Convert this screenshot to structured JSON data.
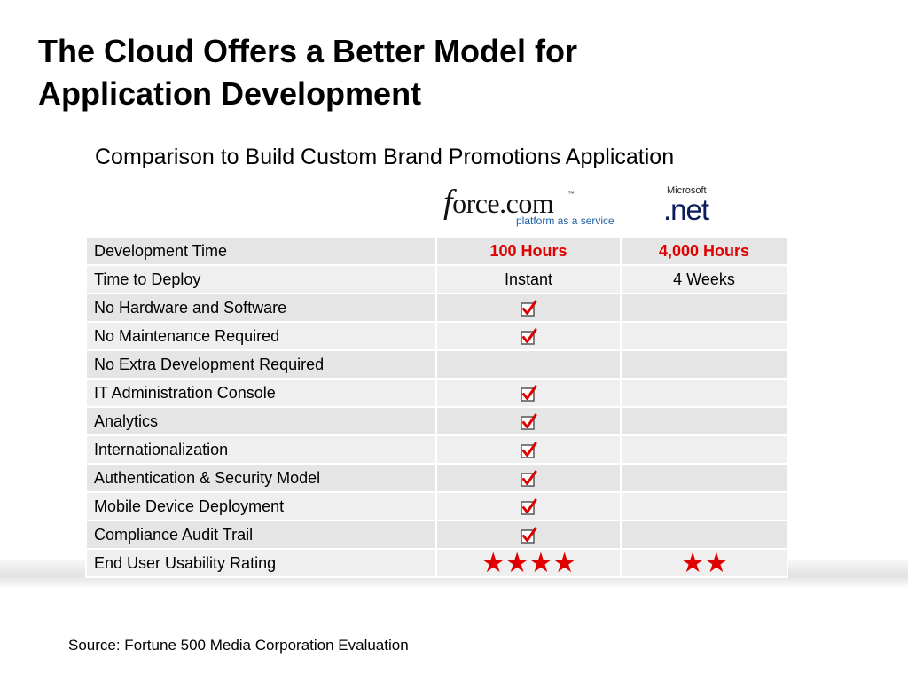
{
  "title_line1": "The Cloud Offers a Better Model for",
  "title_line2": "Application Development",
  "subtitle": "Comparison to Build Custom Brand Promotions Application",
  "logos": {
    "force_main": "force.com",
    "force_f": "f",
    "force_rest": "orce.com",
    "force_tm": "™",
    "force_sub": "platform as a service",
    "ms_label": "Microsoft",
    "net_label": ".net"
  },
  "table": {
    "rows": [
      {
        "label": "Development Time",
        "force": "100 Hours",
        "net": "4,000 Hours"
      },
      {
        "label": "Time to Deploy",
        "force": "Instant",
        "net": "4 Weeks"
      },
      {
        "label": "No Hardware and Software",
        "force_check": true,
        "net_check": false
      },
      {
        "label": "No Maintenance Required",
        "force_check": true,
        "net_check": false
      },
      {
        "label": "No Extra Development Required",
        "force_check": false,
        "net_check": false
      },
      {
        "label": "IT Administration Console",
        "indent": true,
        "force_check": true,
        "net_check": false
      },
      {
        "label": "Analytics",
        "indent": true,
        "force_check": true,
        "net_check": false
      },
      {
        "label": "Internationalization",
        "indent": true,
        "force_check": true,
        "net_check": false
      },
      {
        "label": "Authentication & Security Model",
        "indent": true,
        "force_check": true,
        "net_check": false
      },
      {
        "label": "Mobile Device Deployment",
        "indent": true,
        "force_check": true,
        "net_check": false
      },
      {
        "label": "Compliance Audit Trail",
        "indent": true,
        "force_check": true,
        "net_check": false
      },
      {
        "label": "End User Usability Rating",
        "force_rating": 4,
        "net_rating": 2,
        "force_stars": "★★★★",
        "net_stars": "★★"
      }
    ]
  },
  "source": "Source: Fortune 500 Media Corporation Evaluation",
  "colors": {
    "highlight": "#e00000",
    "check_box": "#555555",
    "check_mark": "#e00000"
  },
  "icons": {
    "check": "checkbox-checked-icon",
    "star": "star-icon"
  }
}
